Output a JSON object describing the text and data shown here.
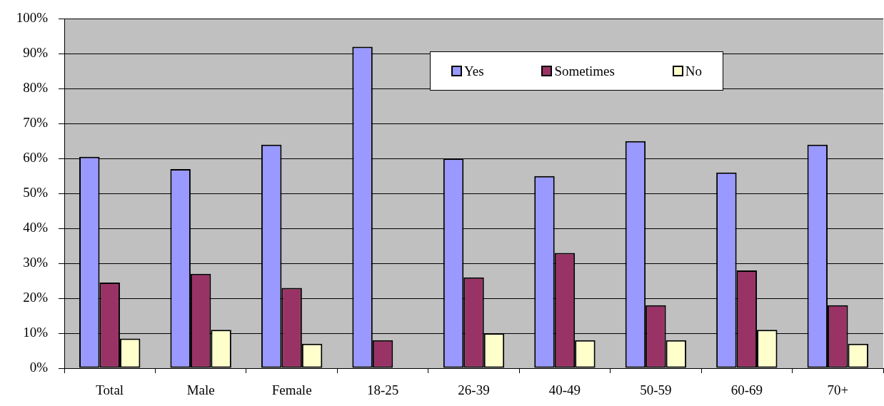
{
  "chart_data": {
    "type": "bar",
    "categories": [
      "Total",
      "Male",
      "Female",
      "18-25",
      "26-39",
      "40-49",
      "50-59",
      "60-69",
      "70+"
    ],
    "series": [
      {
        "name": "Yes",
        "color": "#9999ff",
        "values": [
          60.5,
          57,
          64,
          92,
          60,
          55,
          65,
          56,
          64
        ]
      },
      {
        "name": "Sometimes",
        "color": "#993366",
        "values": [
          24.5,
          27,
          23,
          8,
          26,
          33,
          18,
          28,
          18
        ]
      },
      {
        "name": "No",
        "color": "#ffffcc",
        "values": [
          8.5,
          11,
          7,
          null,
          10,
          8,
          8,
          11,
          7
        ]
      }
    ],
    "ylim": [
      0,
      100
    ],
    "yticks": [
      {
        "value": 0,
        "label": "0%"
      },
      {
        "value": 10,
        "label": "10%"
      },
      {
        "value": 20,
        "label": "20%"
      },
      {
        "value": 30,
        "label": "30%"
      },
      {
        "value": 40,
        "label": "40%"
      },
      {
        "value": 50,
        "label": "50%"
      },
      {
        "value": 60,
        "label": "60%"
      },
      {
        "value": 70,
        "label": "70%"
      },
      {
        "value": 80,
        "label": "80%"
      },
      {
        "value": 90,
        "label": "90%"
      },
      {
        "value": 100,
        "label": "100%"
      }
    ],
    "grid": "y",
    "legend": "top right"
  }
}
